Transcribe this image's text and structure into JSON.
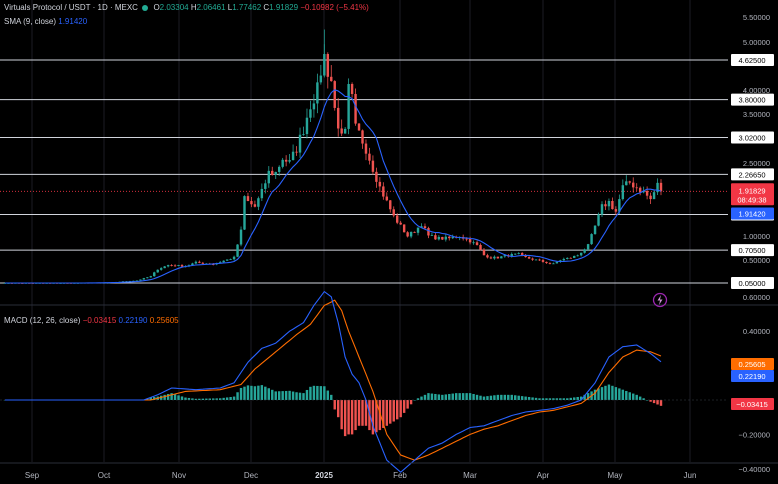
{
  "header": {
    "symbol_line": "Virtuals Protocol / USDT · 1D · MEXC",
    "o_label": "O",
    "o_value": "2.03304",
    "h_label": "H",
    "h_value": "2.06461",
    "l_label": "L",
    "l_value": "1.77462",
    "c_label": "C",
    "c_value": "1.91829",
    "change": "−0.10982 (−5.41%)",
    "sma_label": "SMA (9, close)",
    "sma_value": "1.91420"
  },
  "macd_header": {
    "label": "MACD (12, 26, close)",
    "hist": "−0.03415",
    "macd": "0.22190",
    "signal": "0.25605"
  },
  "colors": {
    "up": "#26a69a",
    "down": "#ef5350",
    "sma": "#2962ff",
    "macd": "#2962ff",
    "signal": "#ff6d00",
    "hist_up": "#26a69a",
    "hist_down": "#ef5350",
    "price_tag": "#f23645",
    "sma_tag": "#2962ff",
    "background": "#000000"
  },
  "chart_data": {
    "type": "line",
    "price_axis": {
      "ticks": [
        {
          "v": 5.5,
          "label": "5.50000"
        },
        {
          "v": 5.0,
          "label": "5.00000"
        },
        {
          "v": 4.0,
          "label": "4.00000"
        },
        {
          "v": 3.5,
          "label": "3.50000"
        },
        {
          "v": 2.5,
          "label": "2.50000"
        },
        {
          "v": 1.0,
          "label": "1.00000"
        },
        {
          "v": 0.5,
          "label": "0.50000"
        }
      ],
      "levels": [
        {
          "v": 4.625,
          "label": "4.62500"
        },
        {
          "v": 3.8,
          "label": "3.80000"
        },
        {
          "v": 3.02,
          "label": "3.02000"
        },
        {
          "v": 2.2665,
          "label": "2.26650"
        },
        {
          "v": 1.4425,
          "label": "1.44250"
        },
        {
          "v": 0.705,
          "label": "0.70500"
        },
        {
          "v": 0.05,
          "label": "0.05000"
        }
      ],
      "last_price": {
        "v": 1.91829,
        "label": "1.91829",
        "countdown": "08:49:38"
      },
      "sma_last": {
        "v": 1.9142,
        "label": "1.91420"
      }
    },
    "macd_axis": {
      "ticks": [
        {
          "v": 0.6,
          "label": "0.60000"
        },
        {
          "v": 0.4,
          "label": "0.40000"
        },
        {
          "v": -0.2,
          "label": "−0.20000"
        },
        {
          "v": -0.4,
          "label": "−0.40000"
        }
      ],
      "tags": [
        {
          "v": 0.25605,
          "label": "0.25605",
          "color": "#ff6d00"
        },
        {
          "v": 0.2219,
          "label": "0.22190",
          "color": "#2962ff"
        },
        {
          "v": -0.03415,
          "label": "−0.03415",
          "color": "#f23645"
        }
      ]
    },
    "x_labels": [
      "Sep",
      "Oct",
      "Nov",
      "Dec",
      "2025",
      "Feb",
      "Mar",
      "Apr",
      "May",
      "Jun"
    ],
    "price_close_anchors": [
      [
        0,
        0.05
      ],
      [
        10,
        0.05
      ],
      [
        20,
        0.05
      ],
      [
        30,
        0.06
      ],
      [
        38,
        0.1
      ],
      [
        42,
        0.18
      ],
      [
        44,
        0.32
      ],
      [
        47,
        0.4
      ],
      [
        52,
        0.38
      ],
      [
        55,
        0.45
      ],
      [
        60,
        0.42
      ],
      [
        66,
        0.55
      ],
      [
        68,
        1.1
      ],
      [
        69,
        1.8
      ],
      [
        70,
        1.7
      ],
      [
        72,
        1.6
      ],
      [
        74,
        1.9
      ],
      [
        76,
        2.3
      ],
      [
        78,
        2.3
      ],
      [
        80,
        2.6
      ],
      [
        82,
        2.5
      ],
      [
        84,
        2.8
      ],
      [
        86,
        3.2
      ],
      [
        88,
        3.7
      ],
      [
        90,
        4.0
      ],
      [
        91,
        4.4
      ],
      [
        92,
        4.7
      ],
      [
        93,
        4.4
      ],
      [
        94,
        4.2
      ],
      [
        95,
        3.6
      ],
      [
        96,
        3.3
      ],
      [
        97,
        3.0
      ],
      [
        98,
        3.1
      ],
      [
        99,
        4.0
      ],
      [
        100,
        3.8
      ],
      [
        101,
        3.2
      ],
      [
        102,
        3.1
      ],
      [
        104,
        2.8
      ],
      [
        106,
        2.4
      ],
      [
        108,
        2.0
      ],
      [
        110,
        1.7
      ],
      [
        112,
        1.4
      ],
      [
        114,
        1.2
      ],
      [
        116,
        1.0
      ],
      [
        118,
        1.1
      ],
      [
        120,
        1.25
      ],
      [
        122,
        1.0
      ],
      [
        125,
        0.95
      ],
      [
        128,
        0.95
      ],
      [
        131,
        1.0
      ],
      [
        134,
        0.9
      ],
      [
        136,
        0.8
      ],
      [
        138,
        0.6
      ],
      [
        140,
        0.55
      ],
      [
        142,
        0.55
      ],
      [
        145,
        0.6
      ],
      [
        148,
        0.62
      ],
      [
        150,
        0.55
      ],
      [
        153,
        0.5
      ],
      [
        156,
        0.45
      ],
      [
        158,
        0.42
      ],
      [
        160,
        0.5
      ],
      [
        163,
        0.55
      ],
      [
        165,
        0.6
      ],
      [
        168,
        0.8
      ],
      [
        170,
        1.2
      ],
      [
        172,
        1.6
      ],
      [
        174,
        1.7
      ],
      [
        176,
        1.5
      ],
      [
        178,
        2.0
      ],
      [
        180,
        2.1
      ],
      [
        182,
        2.0
      ],
      [
        184,
        1.9
      ],
      [
        186,
        1.75
      ],
      [
        188,
        2.05
      ],
      [
        189,
        1.92
      ]
    ],
    "macd_anchors": [
      [
        0,
        0.0
      ],
      [
        40,
        0.0
      ],
      [
        44,
        0.03
      ],
      [
        48,
        0.07
      ],
      [
        55,
        0.06
      ],
      [
        62,
        0.07
      ],
      [
        66,
        0.1
      ],
      [
        70,
        0.22
      ],
      [
        74,
        0.3
      ],
      [
        78,
        0.33
      ],
      [
        82,
        0.4
      ],
      [
        86,
        0.45
      ],
      [
        89,
        0.55
      ],
      [
        92,
        0.63
      ],
      [
        94,
        0.6
      ],
      [
        96,
        0.45
      ],
      [
        98,
        0.25
      ],
      [
        100,
        0.15
      ],
      [
        102,
        0.1
      ],
      [
        104,
        0.0
      ],
      [
        106,
        -0.15
      ],
      [
        110,
        -0.35
      ],
      [
        114,
        -0.42
      ],
      [
        118,
        -0.35
      ],
      [
        122,
        -0.28
      ],
      [
        126,
        -0.25
      ],
      [
        130,
        -0.2
      ],
      [
        134,
        -0.16
      ],
      [
        138,
        -0.15
      ],
      [
        142,
        -0.12
      ],
      [
        146,
        -0.09
      ],
      [
        150,
        -0.07
      ],
      [
        154,
        -0.06
      ],
      [
        158,
        -0.05
      ],
      [
        162,
        -0.03
      ],
      [
        166,
        0.0
      ],
      [
        170,
        0.1
      ],
      [
        174,
        0.25
      ],
      [
        178,
        0.31
      ],
      [
        182,
        0.32
      ],
      [
        186,
        0.27
      ],
      [
        189,
        0.222
      ]
    ],
    "signal_anchors": [
      [
        0,
        0.0
      ],
      [
        42,
        0.0
      ],
      [
        46,
        0.02
      ],
      [
        52,
        0.05
      ],
      [
        62,
        0.06
      ],
      [
        68,
        0.09
      ],
      [
        72,
        0.18
      ],
      [
        78,
        0.28
      ],
      [
        84,
        0.38
      ],
      [
        88,
        0.44
      ],
      [
        92,
        0.55
      ],
      [
        95,
        0.58
      ],
      [
        97,
        0.52
      ],
      [
        99,
        0.4
      ],
      [
        102,
        0.25
      ],
      [
        106,
        0.05
      ],
      [
        110,
        -0.2
      ],
      [
        114,
        -0.32
      ],
      [
        118,
        -0.35
      ],
      [
        122,
        -0.32
      ],
      [
        126,
        -0.28
      ],
      [
        130,
        -0.24
      ],
      [
        134,
        -0.2
      ],
      [
        138,
        -0.17
      ],
      [
        142,
        -0.15
      ],
      [
        146,
        -0.12
      ],
      [
        150,
        -0.09
      ],
      [
        154,
        -0.07
      ],
      [
        158,
        -0.06
      ],
      [
        162,
        -0.04
      ],
      [
        166,
        -0.02
      ],
      [
        170,
        0.04
      ],
      [
        174,
        0.16
      ],
      [
        178,
        0.25
      ],
      [
        182,
        0.29
      ],
      [
        186,
        0.28
      ],
      [
        189,
        0.256
      ]
    ],
    "bar_count": 190
  }
}
